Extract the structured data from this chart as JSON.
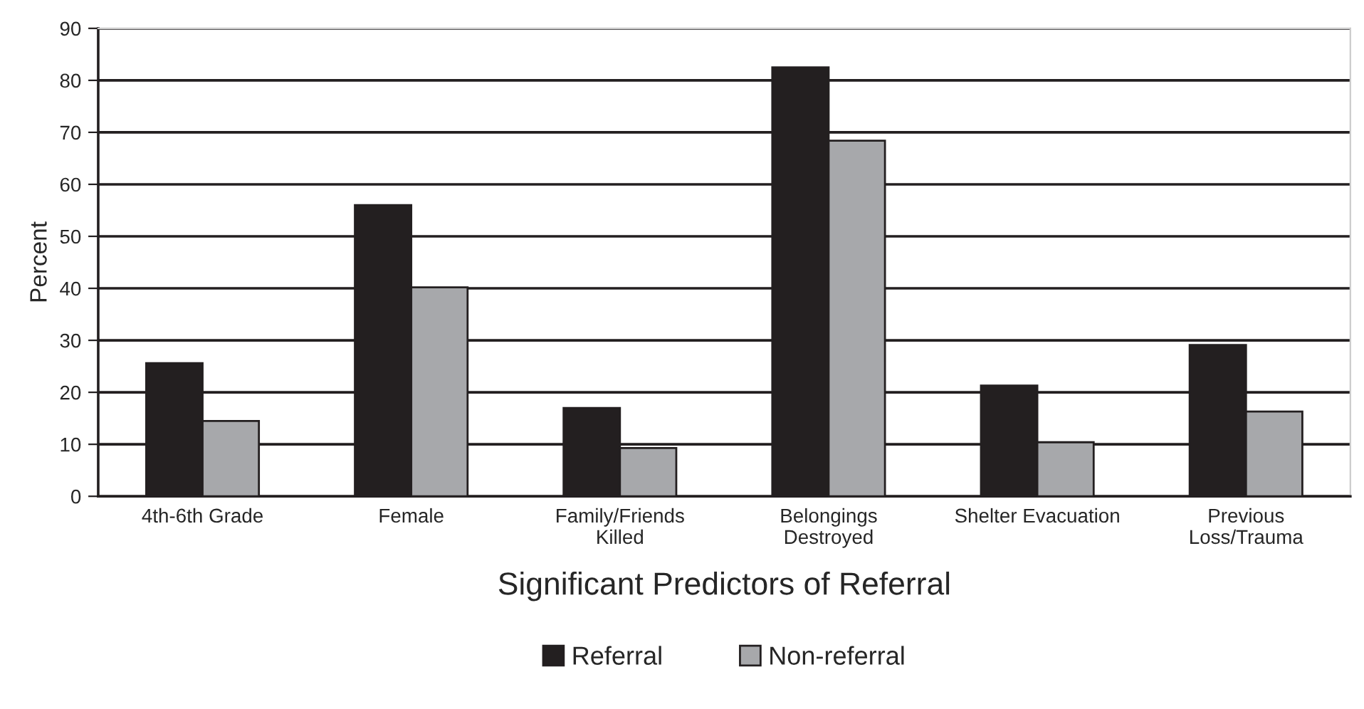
{
  "chart_data": {
    "type": "bar",
    "xlabel": "Significant Predictors of Referral",
    "ylabel": "Percent",
    "categories": [
      "4th-6th Grade",
      "Female",
      "Family/Friends\nKilled",
      "Belongings\nDestroyed",
      "Shelter Evacuation",
      "Previous\nLoss/Trauma"
    ],
    "series": [
      {
        "name": "Referral",
        "color": "#231f20",
        "values": [
          25.6,
          56.0,
          17.0,
          82.5,
          21.3,
          29.1
        ]
      },
      {
        "name": "Non-referral",
        "color": "#a7a8ab",
        "values": [
          14.5,
          40.2,
          9.3,
          68.4,
          10.4,
          16.3
        ]
      }
    ],
    "ylim": [
      0,
      90
    ],
    "yticks": [
      0,
      10,
      20,
      30,
      40,
      50,
      60,
      70,
      80,
      90
    ],
    "grid": "y",
    "legend": "bottom"
  }
}
